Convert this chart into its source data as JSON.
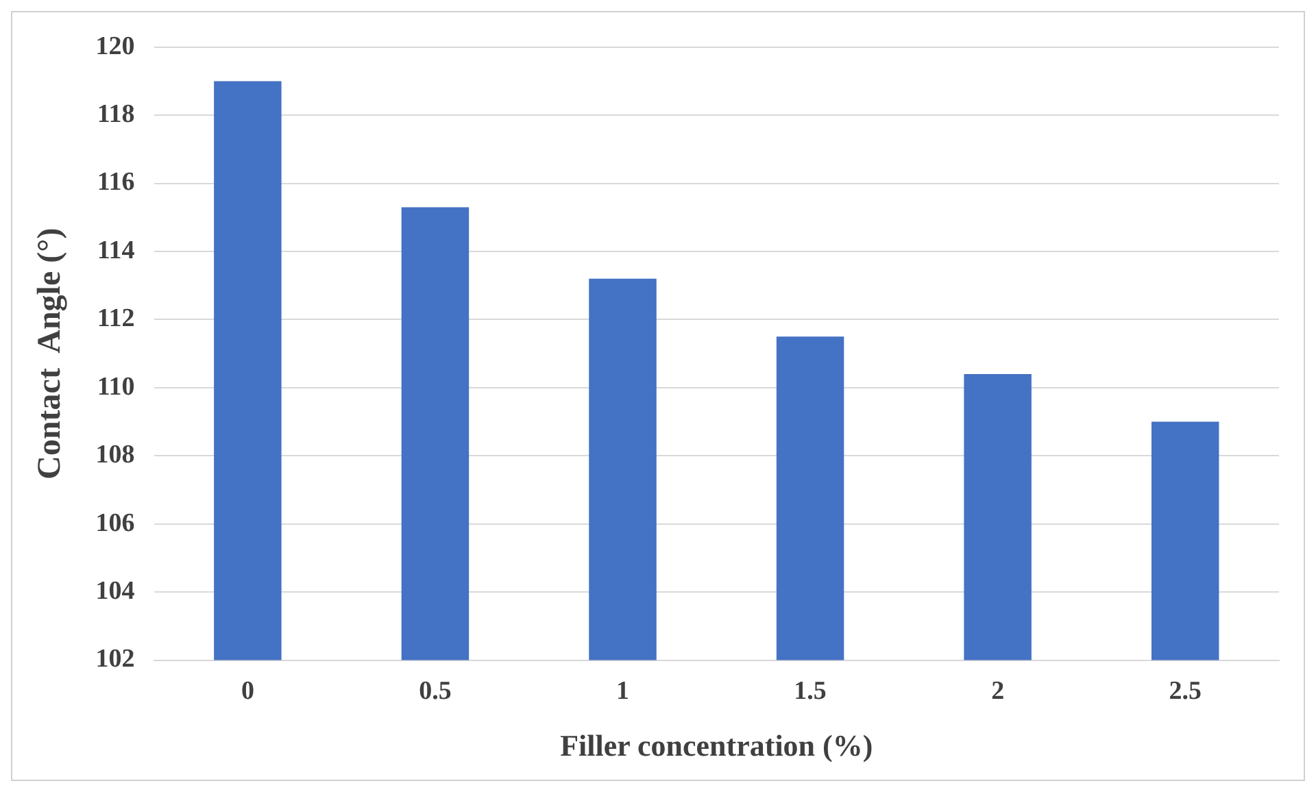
{
  "chart_data": {
    "type": "bar",
    "xlabel": "Filler concentration (%)",
    "ylabel": "Contact  Angle (°)",
    "categories": [
      "0",
      "0.5",
      "1",
      "1.5",
      "2",
      "2.5"
    ],
    "values": [
      119,
      115.3,
      113.2,
      111.5,
      110.4,
      109
    ],
    "color": "#4472c4",
    "ylim": [
      102,
      120
    ],
    "yticks": [
      102,
      104,
      106,
      108,
      110,
      112,
      114,
      116,
      118,
      120
    ],
    "grid": "y",
    "legend": false
  }
}
